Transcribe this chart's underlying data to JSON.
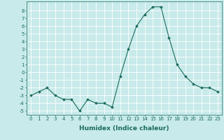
{
  "x": [
    0,
    1,
    2,
    3,
    4,
    5,
    6,
    7,
    8,
    9,
    10,
    11,
    12,
    13,
    14,
    15,
    16,
    17,
    18,
    19,
    20,
    21,
    22,
    23
  ],
  "y": [
    -3,
    -2.5,
    -2,
    -3,
    -3.5,
    -3.5,
    -5,
    -3.5,
    -4,
    -4,
    -4.5,
    -0.5,
    3,
    6,
    7.5,
    8.5,
    8.5,
    4.5,
    1,
    -0.5,
    -1.5,
    -2,
    -2,
    -2.5
  ],
  "xlabel": "Humidex (Indice chaleur)",
  "ylim": [
    -5.5,
    9.2
  ],
  "xlim": [
    -0.5,
    23.5
  ],
  "yticks": [
    -5,
    -4,
    -3,
    -2,
    -1,
    0,
    1,
    2,
    3,
    4,
    5,
    6,
    7,
    8
  ],
  "xticks": [
    0,
    1,
    2,
    3,
    4,
    5,
    6,
    7,
    8,
    9,
    10,
    11,
    12,
    13,
    14,
    15,
    16,
    17,
    18,
    19,
    20,
    21,
    22,
    23
  ],
  "line_color": "#1a6b5a",
  "marker_color": "#1a6b5a",
  "bg_color": "#c8eaea",
  "grid_color": "#ffffff",
  "xlabel_fontsize": 6.5,
  "tick_fontsize": 5.0
}
